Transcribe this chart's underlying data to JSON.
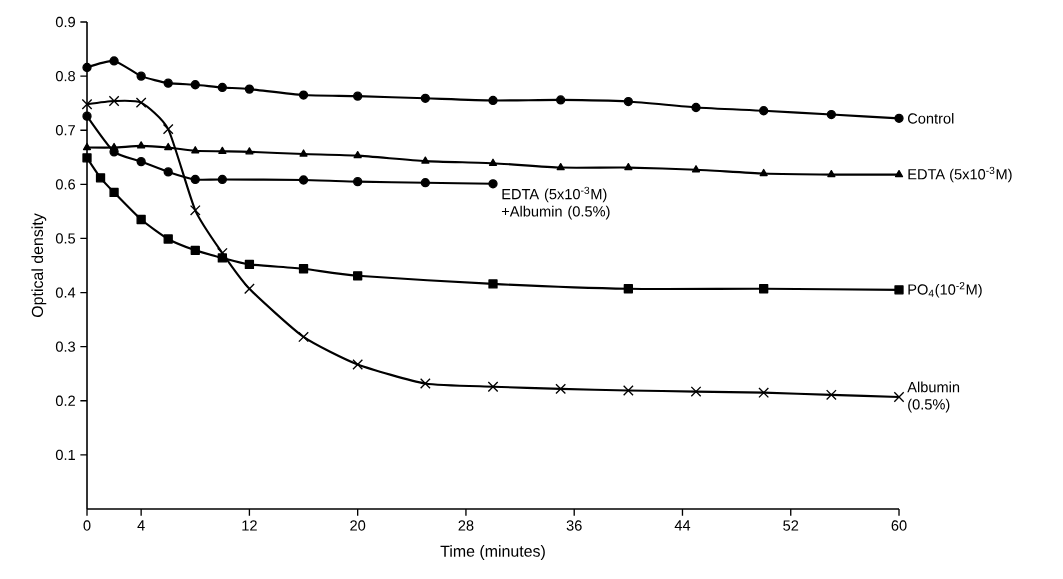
{
  "chart_data": {
    "type": "line",
    "xlabel": "Time (minutes)",
    "ylabel": "Optical density",
    "xlim": [
      0,
      60
    ],
    "ylim": [
      0,
      0.9
    ],
    "xticks": [
      0,
      4,
      12,
      20,
      28,
      36,
      44,
      52,
      60
    ],
    "yticks": [
      0.1,
      0.2,
      0.3,
      0.4,
      0.5,
      0.6,
      0.7,
      0.8,
      0.9
    ],
    "line_style": "solid",
    "series": [
      {
        "name": "Control",
        "color": "#000000",
        "marker": "circle",
        "x": [
          0,
          2,
          4,
          6,
          8,
          10,
          12,
          16,
          20,
          25,
          30,
          35,
          40,
          45,
          50,
          55,
          60
        ],
        "values": [
          0.816,
          0.828,
          0.8,
          0.787,
          0.784,
          0.779,
          0.776,
          0.765,
          0.763,
          0.759,
          0.755,
          0.756,
          0.753,
          0.742,
          0.736,
          0.729,
          0.722
        ]
      },
      {
        "name": "EDTA (5x10$^{-3}$M)",
        "color": "#000000",
        "marker": "triangle",
        "x": [
          0,
          2,
          4,
          6,
          8,
          10,
          12,
          16,
          20,
          25,
          30,
          35,
          40,
          45,
          50,
          55,
          60
        ],
        "values": [
          0.668,
          0.668,
          0.671,
          0.668,
          0.662,
          0.661,
          0.66,
          0.656,
          0.653,
          0.643,
          0.639,
          0.631,
          0.631,
          0.627,
          0.62,
          0.618,
          0.618
        ]
      },
      {
        "name": "EDTA (5x10$^{-3}$M) +Albumin (0.5%)",
        "color": "#000000",
        "marker": "circle",
        "x": [
          0,
          2,
          4,
          6,
          8,
          10,
          16,
          20,
          25,
          30
        ],
        "values": [
          0.726,
          0.66,
          0.642,
          0.623,
          0.609,
          0.609,
          0.608,
          0.605,
          0.603,
          0.601
        ]
      },
      {
        "name": "PO$_{4}$(10$^{-2}$M)",
        "color": "#000000",
        "marker": "square",
        "x": [
          0,
          1,
          2,
          4,
          6,
          8,
          10,
          12,
          16,
          20,
          30,
          40,
          50,
          60
        ],
        "values": [
          0.649,
          0.612,
          0.585,
          0.535,
          0.499,
          0.478,
          0.464,
          0.452,
          0.444,
          0.431,
          0.416,
          0.407,
          0.407,
          0.405
        ]
      },
      {
        "name": "Albumin (0.5%)",
        "color": "#000000",
        "marker": "cross",
        "x": [
          0,
          2,
          4,
          6,
          8,
          10,
          12,
          16,
          20,
          25,
          30,
          35,
          40,
          45,
          50,
          55,
          60
        ],
        "values": [
          0.748,
          0.754,
          0.751,
          0.702,
          0.552,
          0.473,
          0.407,
          0.318,
          0.267,
          0.232,
          0.226,
          0.222,
          0.219,
          0.217,
          0.215,
          0.211,
          0.207
        ]
      }
    ]
  }
}
